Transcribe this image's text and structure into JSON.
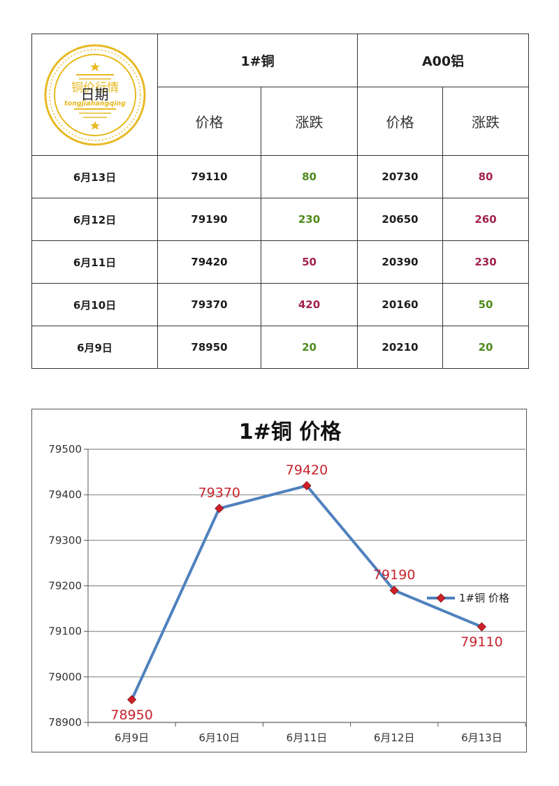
{
  "table": {
    "date_header": "日期",
    "logo": {
      "text_cn": "铜价行情",
      "text_pinyin": "tongjiahangqing"
    },
    "groups": [
      {
        "label": "1#铜",
        "price_header": "价格",
        "change_header": "涨跌"
      },
      {
        "label": "A00铝",
        "price_header": "价格",
        "change_header": "涨跌"
      }
    ],
    "rows": [
      {
        "date": "6月13日",
        "cu_price": "79110",
        "cu_change": "80",
        "cu_dir": "up",
        "al_price": "20730",
        "al_change": "80",
        "al_dir": "down"
      },
      {
        "date": "6月12日",
        "cu_price": "79190",
        "cu_change": "230",
        "cu_dir": "up",
        "al_price": "20650",
        "al_change": "260",
        "al_dir": "down"
      },
      {
        "date": "6月11日",
        "cu_price": "79420",
        "cu_change": "50",
        "cu_dir": "down",
        "al_price": "20390",
        "al_change": "230",
        "al_dir": "down"
      },
      {
        "date": "6月10日",
        "cu_price": "79370",
        "cu_change": "420",
        "cu_dir": "down",
        "al_price": "20160",
        "al_change": "50",
        "al_dir": "up"
      },
      {
        "date": "6月9日",
        "cu_price": "78950",
        "cu_change": "20",
        "cu_dir": "up",
        "al_price": "20210",
        "al_change": "20",
        "al_dir": "up"
      }
    ]
  },
  "colors": {
    "up": "#4d8a1a",
    "down": "#a0234a",
    "line": "#4f81bd",
    "marker": "#d0202a",
    "data_label": "#c8232c",
    "logo_gold": "#e8b923"
  },
  "chart_data": {
    "type": "line",
    "title": "1#铜 价格",
    "categories": [
      "6月9日",
      "6月10日",
      "6月11日",
      "6月12日",
      "6月13日"
    ],
    "series": [
      {
        "name": "1#铜 价格",
        "values": [
          78950,
          79370,
          79420,
          79190,
          79110
        ]
      }
    ],
    "ylim": [
      78900,
      79500
    ],
    "yticks": [
      78900,
      79000,
      79100,
      79200,
      79300,
      79400,
      79500
    ],
    "grid": true,
    "legend": "right",
    "data_labels": true
  }
}
